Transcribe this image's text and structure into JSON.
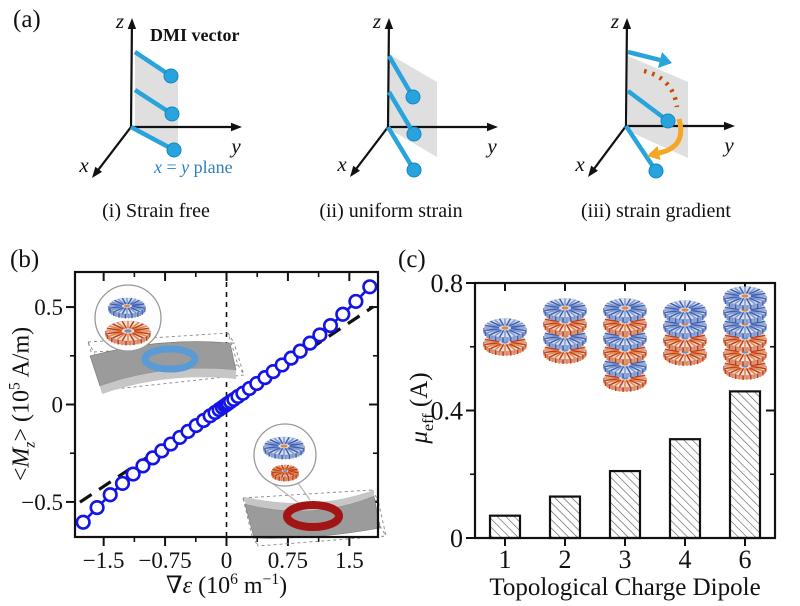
{
  "figure_background": "#ffffff",
  "panels": {
    "a": {
      "label": "(a)",
      "dmi_vector_label": "DMI vector",
      "plane_label_parts": {
        "x": "x",
        "eq": " = ",
        "y": "y",
        "rest": " plane"
      },
      "axes": {
        "x": "x",
        "y": "y",
        "z": "z"
      },
      "subpanels": [
        {
          "caption": "(i) Strain free"
        },
        {
          "caption": "(ii) uniform strain"
        },
        {
          "caption": "(iii) strain gradient"
        }
      ],
      "colors": {
        "vector": "#29a3db",
        "vector_edge": "#1286c4",
        "plane": "#dcdcdc",
        "axis": "#111111",
        "plane_label": "#2f7fc1",
        "dotted_arc": "#c84b00",
        "orange_arrow": "#f5a623"
      }
    },
    "b": {
      "label": "(b)",
      "xlabel_parts": {
        "nabla": "∇",
        "var": "ε",
        "a": " (10",
        "exp": "6",
        "b": " m",
        "exp2": "−1",
        "c": ")"
      },
      "ylabel_parts": {
        "lt": "<",
        "var": "M",
        "sub": "z",
        "gt": "> (10",
        "exp": "5",
        "unit": " A/m)"
      },
      "colors": {
        "series": "#1414e6",
        "fit": "#111111",
        "ring_blue": "#5b9bd5",
        "ring_red": "#a31515"
      }
    },
    "c": {
      "label": "(c)",
      "xlabel": "Topological Charge Dipole",
      "ylabel_parts": {
        "var": "μ",
        "sub": "eff",
        "rest": " (A)"
      },
      "colors": {
        "bar_edge": "#111111",
        "hatch": "#555555"
      }
    }
  },
  "chart_data": [
    {
      "type": "scatter",
      "panel": "b",
      "title": "",
      "xlabel": "∇ε (10^6 m^-1)",
      "ylabel": "<Mz> (10^5 A/m)",
      "xlim": [
        -1.85,
        1.85
      ],
      "ylim": [
        -0.68,
        0.68
      ],
      "xticks": [
        -1.5,
        -0.75,
        0,
        0.75,
        1.5
      ],
      "xtick_labels": [
        "−1.5",
        "−0.75",
        "0",
        "0.75",
        "1.5"
      ],
      "xticks_minor": [
        -1.125,
        -0.375,
        0.375,
        1.125
      ],
      "yticks": [
        -0.5,
        0,
        0.5
      ],
      "ytick_labels": [
        "−0.5",
        "0",
        "0.5"
      ],
      "yticks_minor": [
        -0.25,
        0.25
      ],
      "marker": "open-circle",
      "grid": false,
      "zero_vline": 0,
      "fit_line": {
        "style": "dashed",
        "slope": 0.28,
        "x_range": [
          -1.79,
          1.79
        ]
      },
      "points": [
        [
          -1.75,
          -0.604
        ],
        [
          -1.58,
          -0.529
        ],
        [
          -1.42,
          -0.463
        ],
        [
          -1.27,
          -0.405
        ],
        [
          -1.14,
          -0.357
        ],
        [
          -1.02,
          -0.315
        ],
        [
          -0.9,
          -0.274
        ],
        [
          -0.79,
          -0.238
        ],
        [
          -0.68,
          -0.203
        ],
        [
          -0.57,
          -0.169
        ],
        [
          -0.47,
          -0.138
        ],
        [
          -0.37,
          -0.108
        ],
        [
          -0.28,
          -0.082
        ],
        [
          -0.2,
          -0.058
        ],
        [
          -0.14,
          -0.041
        ],
        [
          -0.09,
          -0.026
        ],
        [
          -0.05,
          -0.015
        ],
        [
          -0.02,
          -0.006
        ],
        [
          0.0,
          0.0
        ],
        [
          0.02,
          0.006
        ],
        [
          0.05,
          0.015
        ],
        [
          0.09,
          0.026
        ],
        [
          0.14,
          0.041
        ],
        [
          0.2,
          0.058
        ],
        [
          0.28,
          0.082
        ],
        [
          0.37,
          0.108
        ],
        [
          0.47,
          0.138
        ],
        [
          0.57,
          0.169
        ],
        [
          0.68,
          0.203
        ],
        [
          0.79,
          0.238
        ],
        [
          0.9,
          0.274
        ],
        [
          1.02,
          0.315
        ],
        [
          1.14,
          0.357
        ],
        [
          1.27,
          0.405
        ],
        [
          1.42,
          0.463
        ],
        [
          1.58,
          0.529
        ],
        [
          1.75,
          0.604
        ]
      ]
    },
    {
      "type": "bar",
      "panel": "c",
      "title": "",
      "xlabel": "Topological Charge Dipole",
      "ylabel": "μ_eff (A)",
      "categories": [
        "1",
        "2",
        "3",
        "4",
        "6"
      ],
      "values": [
        0.07,
        0.13,
        0.21,
        0.31,
        0.46
      ],
      "ylim": [
        0,
        0.8
      ],
      "yticks": [
        0,
        0.4,
        0.8
      ],
      "ytick_labels": [
        "0",
        "0.4",
        "0.8"
      ],
      "yticks_minor": [
        0.2,
        0.6
      ],
      "bar_style": "hatched",
      "legend": null,
      "skyrmion_stacks": [
        [
          "blue",
          "red"
        ],
        [
          "blue",
          "red",
          "blue",
          "red"
        ],
        [
          "blue",
          "red",
          "blue",
          "red",
          "blue",
          "red"
        ],
        [
          "blue",
          "blue",
          "red",
          "red"
        ],
        [
          "blue",
          "blue",
          "blue",
          "red",
          "red",
          "red"
        ]
      ]
    }
  ]
}
